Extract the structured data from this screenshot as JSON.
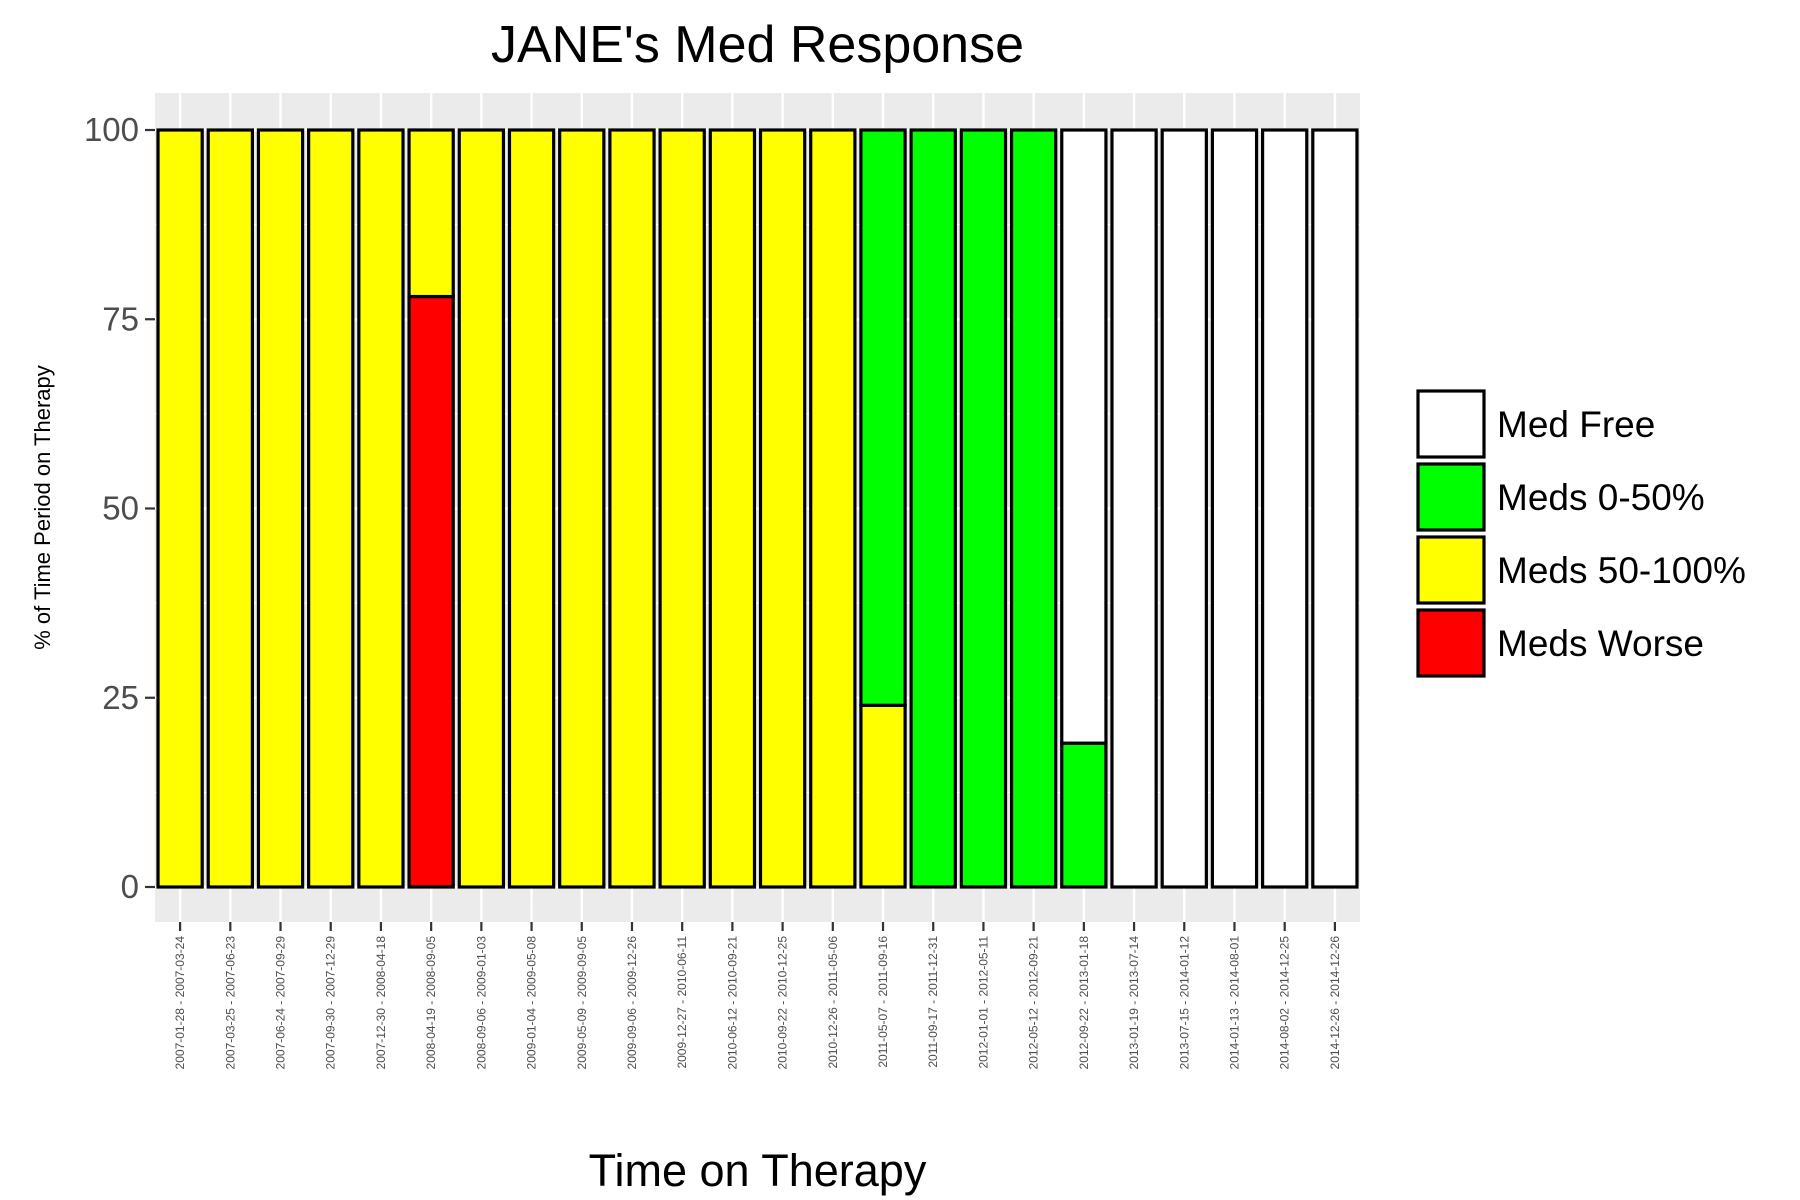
{
  "chart_data": {
    "type": "bar",
    "stacked": true,
    "title": "JANE's Med Response",
    "xlabel": "Time on Therapy",
    "ylabel": "% of Time Period on Therapy",
    "ylim": [
      0,
      100
    ],
    "yticks": [
      "0",
      "25",
      "50",
      "75",
      "100"
    ],
    "grid": true,
    "legend_position": "right",
    "categories": [
      "2007-01-28 - 2007-03-24",
      "2007-03-25 - 2007-06-23",
      "2007-06-24 - 2007-09-29",
      "2007-09-30 - 2007-12-29",
      "2007-12-30 - 2008-04-18",
      "2008-04-19 - 2008-09-05",
      "2008-09-06 - 2009-01-03",
      "2009-01-04 - 2009-05-08",
      "2009-05-09 - 2009-09-05",
      "2009-09-06 - 2009-12-26",
      "2009-12-27 - 2010-06-11",
      "2010-06-12 - 2010-09-21",
      "2010-09-22 - 2010-12-25",
      "2010-12-26 - 2011-05-06",
      "2011-05-07 - 2011-09-16",
      "2011-09-17 - 2011-12-31",
      "2012-01-01 - 2012-05-11",
      "2012-05-12 - 2012-09-21",
      "2012-09-22 - 2013-01-18",
      "2013-01-19 - 2013-07-14",
      "2013-07-15 - 2014-01-12",
      "2014-01-13 - 2014-08-01",
      "2014-08-02 - 2014-12-25",
      "2014-12-26 - 2014-12-26"
    ],
    "series": [
      {
        "name": "Med Free",
        "color": "#ffffff",
        "values": [
          0,
          0,
          0,
          0,
          0,
          0,
          0,
          0,
          0,
          0,
          0,
          0,
          0,
          0,
          0,
          0,
          0,
          0,
          81,
          100,
          100,
          100,
          100,
          100
        ]
      },
      {
        "name": "Meds 0-50%",
        "color": "#00ff00",
        "values": [
          0,
          0,
          0,
          0,
          0,
          0,
          0,
          0,
          0,
          0,
          0,
          0,
          0,
          0,
          76,
          100,
          100,
          100,
          19,
          0,
          0,
          0,
          0,
          0
        ]
      },
      {
        "name": "Meds 50-100%",
        "color": "#ffff00",
        "values": [
          100,
          100,
          100,
          100,
          100,
          22,
          100,
          100,
          100,
          100,
          100,
          100,
          100,
          100,
          24,
          0,
          0,
          0,
          0,
          0,
          0,
          0,
          0,
          0
        ]
      },
      {
        "name": "Meds Worse",
        "color": "#ff0000",
        "values": [
          0,
          0,
          0,
          0,
          0,
          78,
          0,
          0,
          0,
          0,
          0,
          0,
          0,
          0,
          0,
          0,
          0,
          0,
          0,
          0,
          0,
          0,
          0,
          0
        ]
      }
    ]
  }
}
